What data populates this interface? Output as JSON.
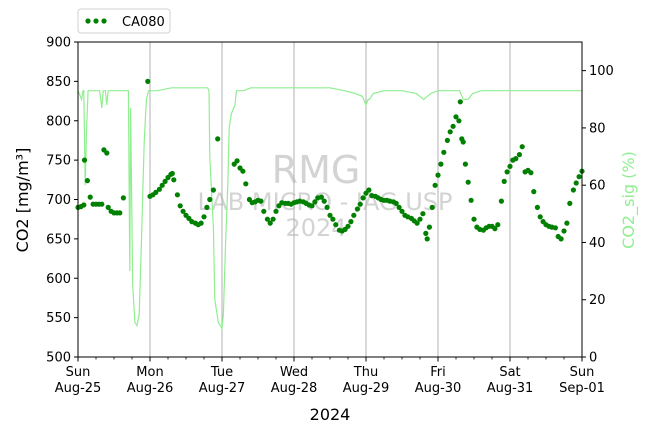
{
  "chart_data": {
    "type": "scatter",
    "xlabel": "2024",
    "ylabel": "CO2 [mg/m³]",
    "ylabel_right": "CO2_sig (%)",
    "ylim": [
      500,
      900
    ],
    "ylim_right": [
      0,
      110
    ],
    "xlim": [
      0,
      7
    ],
    "y_ticks": [
      500,
      550,
      600,
      650,
      700,
      750,
      800,
      850,
      900
    ],
    "y_ticks_right": [
      0,
      20,
      40,
      60,
      80,
      100
    ],
    "x_ticks": [
      {
        "day": 0,
        "line1": "Sun",
        "line2": "Aug-25"
      },
      {
        "day": 1,
        "line1": "Mon",
        "line2": "Aug-26"
      },
      {
        "day": 2,
        "line1": "Tue",
        "line2": "Aug-27"
      },
      {
        "day": 3,
        "line1": "Wed",
        "line2": "Aug-28"
      },
      {
        "day": 4,
        "line1": "Thu",
        "line2": "Aug-29"
      },
      {
        "day": 5,
        "line1": "Fri",
        "line2": "Aug-30"
      },
      {
        "day": 6,
        "line1": "Sat",
        "line2": "Aug-31"
      },
      {
        "day": 7,
        "line1": "Sun",
        "line2": "Sep-01"
      }
    ],
    "grid": "vertical at day boundaries",
    "legend_placement": "top-left, above plot",
    "watermark": {
      "line1": "RMG",
      "line2": "LAB MICRO - IAG USP",
      "line3": "2024"
    },
    "series": [
      {
        "name": "CA080",
        "axis": "left",
        "style": "dots",
        "color": "#008000",
        "points": [
          [
            0.0,
            690
          ],
          [
            0.04,
            691
          ],
          [
            0.08,
            693
          ],
          [
            0.09,
            750
          ],
          [
            0.13,
            724
          ],
          [
            0.17,
            703
          ],
          [
            0.21,
            694
          ],
          [
            0.25,
            694
          ],
          [
            0.29,
            694
          ],
          [
            0.33,
            694
          ],
          [
            0.36,
            763
          ],
          [
            0.4,
            759
          ],
          [
            0.42,
            690
          ],
          [
            0.46,
            685
          ],
          [
            0.5,
            683
          ],
          [
            0.54,
            683
          ],
          [
            0.58,
            683
          ],
          [
            0.63,
            702
          ],
          [
            0.97,
            850
          ],
          [
            1.0,
            704
          ],
          [
            1.04,
            706
          ],
          [
            1.08,
            709
          ],
          [
            1.13,
            713
          ],
          [
            1.17,
            718
          ],
          [
            1.21,
            723
          ],
          [
            1.25,
            728
          ],
          [
            1.29,
            732
          ],
          [
            1.31,
            733
          ],
          [
            1.33,
            725
          ],
          [
            1.38,
            706
          ],
          [
            1.42,
            692
          ],
          [
            1.46,
            685
          ],
          [
            1.5,
            680
          ],
          [
            1.54,
            676
          ],
          [
            1.58,
            672
          ],
          [
            1.63,
            670
          ],
          [
            1.67,
            668
          ],
          [
            1.71,
            670
          ],
          [
            1.75,
            678
          ],
          [
            1.79,
            690
          ],
          [
            1.83,
            700
          ],
          [
            1.88,
            712
          ],
          [
            1.94,
            777
          ],
          [
            2.17,
            745
          ],
          [
            2.21,
            749
          ],
          [
            2.25,
            740
          ],
          [
            2.29,
            736
          ],
          [
            2.33,
            720
          ],
          [
            2.38,
            700
          ],
          [
            2.42,
            696
          ],
          [
            2.46,
            697
          ],
          [
            2.5,
            699
          ],
          [
            2.54,
            698
          ],
          [
            2.58,
            685
          ],
          [
            2.63,
            675
          ],
          [
            2.67,
            670
          ],
          [
            2.71,
            675
          ],
          [
            2.75,
            685
          ],
          [
            2.79,
            692
          ],
          [
            2.83,
            696
          ],
          [
            2.88,
            695
          ],
          [
            2.92,
            695
          ],
          [
            2.96,
            694
          ],
          [
            3.0,
            696
          ],
          [
            3.04,
            697
          ],
          [
            3.08,
            698
          ],
          [
            3.13,
            697
          ],
          [
            3.17,
            695
          ],
          [
            3.21,
            693
          ],
          [
            3.25,
            692
          ],
          [
            3.29,
            697
          ],
          [
            3.33,
            702
          ],
          [
            3.38,
            703
          ],
          [
            3.42,
            698
          ],
          [
            3.46,
            690
          ],
          [
            3.5,
            680
          ],
          [
            3.54,
            675
          ],
          [
            3.58,
            668
          ],
          [
            3.63,
            661
          ],
          [
            3.67,
            660
          ],
          [
            3.71,
            662
          ],
          [
            3.75,
            666
          ],
          [
            3.79,
            672
          ],
          [
            3.83,
            680
          ],
          [
            3.88,
            688
          ],
          [
            3.92,
            694
          ],
          [
            3.96,
            702
          ],
          [
            4.0,
            708
          ],
          [
            4.04,
            712
          ],
          [
            4.08,
            705
          ],
          [
            4.13,
            704
          ],
          [
            4.17,
            702
          ],
          [
            4.21,
            700
          ],
          [
            4.25,
            699
          ],
          [
            4.29,
            699
          ],
          [
            4.33,
            698
          ],
          [
            4.38,
            697
          ],
          [
            4.42,
            695
          ],
          [
            4.46,
            690
          ],
          [
            4.5,
            685
          ],
          [
            4.54,
            680
          ],
          [
            4.58,
            678
          ],
          [
            4.63,
            676
          ],
          [
            4.67,
            673
          ],
          [
            4.71,
            670
          ],
          [
            4.75,
            675
          ],
          [
            4.79,
            682
          ],
          [
            4.83,
            657
          ],
          [
            4.85,
            650
          ],
          [
            4.88,
            665
          ],
          [
            4.92,
            690
          ],
          [
            4.96,
            718
          ],
          [
            5.0,
            731
          ],
          [
            5.04,
            745
          ],
          [
            5.08,
            760
          ],
          [
            5.13,
            775
          ],
          [
            5.17,
            786
          ],
          [
            5.21,
            793
          ],
          [
            5.25,
            805
          ],
          [
            5.29,
            800
          ],
          [
            5.31,
            824
          ],
          [
            5.33,
            777
          ],
          [
            5.35,
            773
          ],
          [
            5.38,
            745
          ],
          [
            5.42,
            722
          ],
          [
            5.46,
            699
          ],
          [
            5.5,
            675
          ],
          [
            5.54,
            665
          ],
          [
            5.58,
            662
          ],
          [
            5.63,
            661
          ],
          [
            5.67,
            664
          ],
          [
            5.71,
            666
          ],
          [
            5.75,
            666
          ],
          [
            5.79,
            663
          ],
          [
            5.83,
            668
          ],
          [
            5.88,
            698
          ],
          [
            5.92,
            723
          ],
          [
            5.96,
            735
          ],
          [
            6.0,
            742
          ],
          [
            6.04,
            750
          ],
          [
            6.08,
            752
          ],
          [
            6.13,
            757
          ],
          [
            6.17,
            767
          ],
          [
            6.21,
            735
          ],
          [
            6.25,
            737
          ],
          [
            6.29,
            734
          ],
          [
            6.33,
            710
          ],
          [
            6.38,
            690
          ],
          [
            6.42,
            678
          ],
          [
            6.46,
            672
          ],
          [
            6.5,
            668
          ],
          [
            6.54,
            666
          ],
          [
            6.58,
            665
          ],
          [
            6.63,
            664
          ],
          [
            6.67,
            653
          ],
          [
            6.71,
            650
          ],
          [
            6.75,
            660
          ],
          [
            6.79,
            670
          ],
          [
            6.83,
            695
          ],
          [
            6.88,
            712
          ],
          [
            6.92,
            721
          ],
          [
            6.96,
            729
          ],
          [
            7.0,
            736
          ]
        ]
      },
      {
        "name": "CO2_sig",
        "axis": "right",
        "style": "line",
        "color": "#90ee90",
        "points": [
          [
            0.0,
            93
          ],
          [
            0.05,
            90
          ],
          [
            0.07,
            93
          ],
          [
            0.08,
            93
          ],
          [
            0.1,
            60
          ],
          [
            0.12,
            80
          ],
          [
            0.14,
            93
          ],
          [
            0.17,
            93
          ],
          [
            0.25,
            93
          ],
          [
            0.3,
            93
          ],
          [
            0.33,
            87
          ],
          [
            0.35,
            93
          ],
          [
            0.38,
            93
          ],
          [
            0.4,
            88
          ],
          [
            0.42,
            93
          ],
          [
            0.55,
            93
          ],
          [
            0.65,
            93
          ],
          [
            0.7,
            93
          ],
          [
            0.72,
            30
          ],
          [
            0.73,
            87
          ],
          [
            0.76,
            25
          ],
          [
            0.79,
            12
          ],
          [
            0.82,
            11
          ],
          [
            0.85,
            15
          ],
          [
            0.88,
            40
          ],
          [
            0.92,
            75
          ],
          [
            0.95,
            90
          ],
          [
            0.98,
            93
          ],
          [
            1.1,
            93
          ],
          [
            1.3,
            94
          ],
          [
            1.5,
            94
          ],
          [
            1.65,
            94
          ],
          [
            1.75,
            94
          ],
          [
            1.8,
            94
          ],
          [
            1.82,
            93
          ],
          [
            1.83,
            70
          ],
          [
            1.85,
            60
          ],
          [
            1.88,
            45
          ],
          [
            1.9,
            20
          ],
          [
            1.95,
            12
          ],
          [
            2.0,
            10
          ],
          [
            2.02,
            15
          ],
          [
            2.05,
            40
          ],
          [
            2.08,
            60
          ],
          [
            2.1,
            80
          ],
          [
            2.13,
            85
          ],
          [
            2.18,
            88
          ],
          [
            2.2,
            93
          ],
          [
            2.25,
            93
          ],
          [
            2.3,
            93
          ],
          [
            2.4,
            94
          ],
          [
            2.7,
            94
          ],
          [
            3.0,
            94
          ],
          [
            3.3,
            94
          ],
          [
            3.5,
            94
          ],
          [
            3.7,
            93
          ],
          [
            3.85,
            92
          ],
          [
            3.95,
            91
          ],
          [
            4.0,
            88
          ],
          [
            4.03,
            90
          ],
          [
            4.05,
            90
          ],
          [
            4.1,
            92
          ],
          [
            4.25,
            93
          ],
          [
            4.4,
            93
          ],
          [
            4.5,
            93
          ],
          [
            4.7,
            92
          ],
          [
            4.8,
            90
          ],
          [
            4.9,
            92
          ],
          [
            5.0,
            93
          ],
          [
            5.1,
            93
          ],
          [
            5.2,
            93
          ],
          [
            5.3,
            93
          ],
          [
            5.35,
            90
          ],
          [
            5.42,
            90
          ],
          [
            5.48,
            92
          ],
          [
            5.6,
            93
          ],
          [
            5.8,
            93
          ],
          [
            6.0,
            93
          ],
          [
            6.2,
            93
          ],
          [
            6.4,
            93
          ],
          [
            6.6,
            93
          ],
          [
            6.8,
            93
          ],
          [
            7.0,
            93
          ]
        ]
      }
    ]
  }
}
